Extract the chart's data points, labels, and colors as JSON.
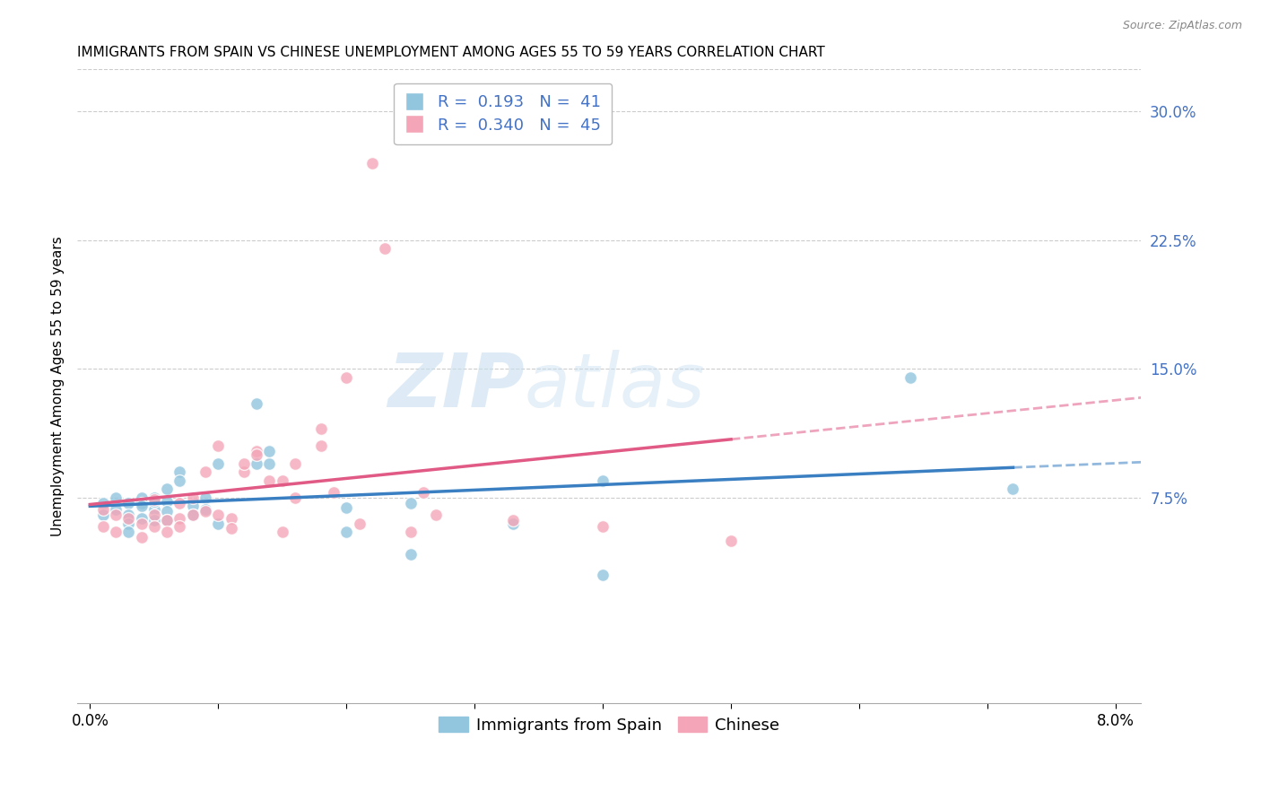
{
  "title": "IMMIGRANTS FROM SPAIN VS CHINESE UNEMPLOYMENT AMONG AGES 55 TO 59 YEARS CORRELATION CHART",
  "source": "Source: ZipAtlas.com",
  "ylabel": "Unemployment Among Ages 55 to 59 years",
  "xlim": [
    -0.001,
    0.082
  ],
  "ylim": [
    -0.045,
    0.325
  ],
  "xtick_positions": [
    0.0,
    0.01,
    0.02,
    0.03,
    0.04,
    0.05,
    0.06,
    0.07,
    0.08
  ],
  "xticklabels": [
    "0.0%",
    "",
    "",
    "",
    "",
    "",
    "",
    "",
    "8.0%"
  ],
  "right_yticks": [
    0.075,
    0.15,
    0.225,
    0.3
  ],
  "right_yticklabels": [
    "7.5%",
    "15.0%",
    "22.5%",
    "30.0%"
  ],
  "legend_blue_r": "0.193",
  "legend_blue_n": "41",
  "legend_pink_r": "0.340",
  "legend_pink_n": "45",
  "blue_color": "#92c5de",
  "pink_color": "#f4a6b8",
  "blue_line_color": "#3a7fc1",
  "pink_line_color": "#e05a85",
  "right_tick_color": "#4472c4",
  "blue_scatter_x": [
    0.001,
    0.001,
    0.002,
    0.002,
    0.003,
    0.003,
    0.003,
    0.003,
    0.004,
    0.004,
    0.004,
    0.004,
    0.005,
    0.005,
    0.005,
    0.005,
    0.006,
    0.006,
    0.006,
    0.006,
    0.007,
    0.007,
    0.008,
    0.008,
    0.009,
    0.009,
    0.01,
    0.01,
    0.013,
    0.013,
    0.014,
    0.014,
    0.02,
    0.02,
    0.025,
    0.025,
    0.033,
    0.04,
    0.04,
    0.064,
    0.072
  ],
  "blue_scatter_y": [
    0.072,
    0.065,
    0.075,
    0.068,
    0.072,
    0.065,
    0.06,
    0.055,
    0.075,
    0.072,
    0.07,
    0.063,
    0.075,
    0.068,
    0.073,
    0.062,
    0.08,
    0.073,
    0.067,
    0.062,
    0.09,
    0.085,
    0.07,
    0.065,
    0.075,
    0.068,
    0.095,
    0.06,
    0.13,
    0.095,
    0.095,
    0.102,
    0.069,
    0.055,
    0.072,
    0.042,
    0.06,
    0.085,
    0.03,
    0.145,
    0.08
  ],
  "pink_scatter_x": [
    0.001,
    0.001,
    0.002,
    0.002,
    0.003,
    0.004,
    0.004,
    0.005,
    0.005,
    0.005,
    0.006,
    0.006,
    0.007,
    0.007,
    0.007,
    0.008,
    0.008,
    0.009,
    0.009,
    0.01,
    0.01,
    0.011,
    0.011,
    0.012,
    0.012,
    0.013,
    0.013,
    0.014,
    0.015,
    0.015,
    0.016,
    0.016,
    0.018,
    0.018,
    0.019,
    0.02,
    0.021,
    0.022,
    0.023,
    0.025,
    0.026,
    0.027,
    0.033,
    0.04,
    0.05
  ],
  "pink_scatter_y": [
    0.068,
    0.058,
    0.065,
    0.055,
    0.063,
    0.06,
    0.052,
    0.074,
    0.065,
    0.058,
    0.062,
    0.055,
    0.072,
    0.063,
    0.058,
    0.075,
    0.065,
    0.09,
    0.067,
    0.105,
    0.065,
    0.063,
    0.057,
    0.09,
    0.095,
    0.102,
    0.1,
    0.085,
    0.085,
    0.055,
    0.095,
    0.075,
    0.115,
    0.105,
    0.078,
    0.145,
    0.06,
    0.27,
    0.22,
    0.055,
    0.078,
    0.065,
    0.062,
    0.058,
    0.05
  ],
  "title_fontsize": 11,
  "axis_label_fontsize": 11,
  "tick_fontsize": 12,
  "legend_fontsize": 13
}
